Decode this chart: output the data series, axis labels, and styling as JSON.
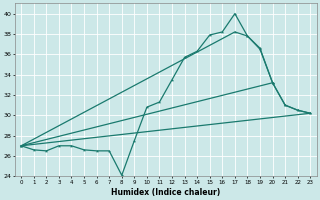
{
  "xlabel": "Humidex (Indice chaleur)",
  "bg_color": "#cce8e8",
  "line_color": "#1a7a6e",
  "grid_color": "#ffffff",
  "xlim": [
    -0.5,
    23.5
  ],
  "ylim": [
    24,
    41
  ],
  "yticks": [
    24,
    26,
    28,
    30,
    32,
    34,
    36,
    38,
    40
  ],
  "xticks": [
    0,
    1,
    2,
    3,
    4,
    5,
    6,
    7,
    8,
    9,
    10,
    11,
    12,
    13,
    14,
    15,
    16,
    17,
    18,
    19,
    20,
    21,
    22,
    23
  ],
  "line1_x": [
    0,
    1,
    2,
    3,
    4,
    5,
    6,
    7,
    8,
    9,
    10,
    11,
    12,
    13,
    14,
    15,
    16,
    17,
    18,
    19,
    20
  ],
  "line1_y": [
    27.0,
    26.6,
    26.5,
    27.0,
    27.0,
    26.6,
    26.5,
    26.5,
    24.1,
    27.5,
    30.8,
    31.3,
    33.5,
    35.7,
    36.3,
    37.9,
    38.2,
    40.0,
    37.8,
    36.6,
    33.2
  ],
  "line2_x": [
    0,
    17,
    18,
    19,
    20,
    21,
    22,
    23
  ],
  "line2_y": [
    27.0,
    38.2,
    37.8,
    36.5,
    33.2,
    31.0,
    30.5,
    30.2
  ],
  "line3_x": [
    0,
    23
  ],
  "line3_y": [
    27.0,
    30.2
  ],
  "line4_x": [
    0,
    20,
    21,
    22,
    23
  ],
  "line4_y": [
    27.0,
    33.2,
    31.0,
    30.5,
    30.2
  ]
}
